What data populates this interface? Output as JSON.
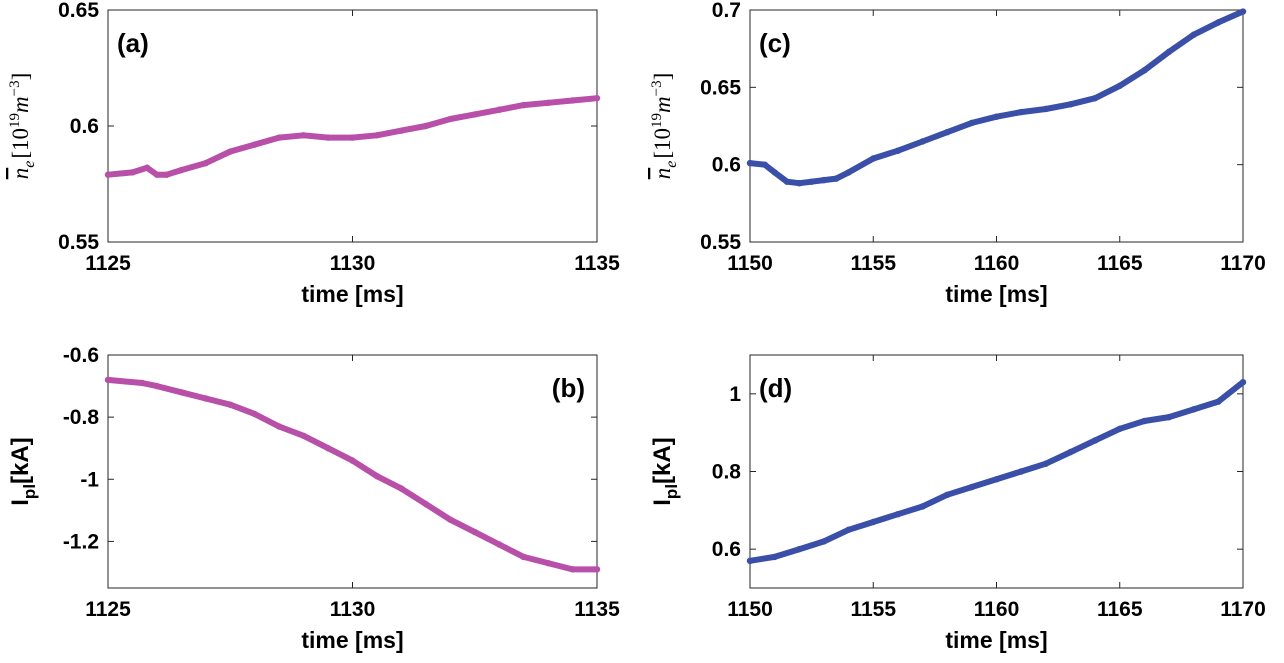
{
  "chart_data": [
    {
      "type": "line",
      "panel_label": "(a)",
      "label_pos": "top-left",
      "xlabel": "time [ms]",
      "ylabel": {
        "main": "n",
        "sub": "e",
        "unit": "[10",
        "exp": "19",
        "unit2": "m",
        "exp2": "−3",
        "close": "]"
      },
      "xlim": [
        1125,
        1135
      ],
      "ylim": [
        0.55,
        0.65
      ],
      "xticks": [
        1125,
        1130,
        1135
      ],
      "yticks": [
        0.55,
        0.6,
        0.65
      ],
      "yticklabels": [
        "0.55",
        "0.6",
        "0.65"
      ],
      "color": "#b84fa8",
      "x": [
        1125,
        1125.5,
        1125.8,
        1126.0,
        1126.2,
        1126.5,
        1127.0,
        1127.5,
        1128.0,
        1128.5,
        1129.0,
        1129.5,
        1130.0,
        1130.5,
        1131.0,
        1131.5,
        1132.0,
        1132.5,
        1133.0,
        1133.5,
        1134.0,
        1134.5,
        1135
      ],
      "y": [
        0.579,
        0.58,
        0.582,
        0.579,
        0.579,
        0.581,
        0.584,
        0.589,
        0.592,
        0.595,
        0.596,
        0.595,
        0.595,
        0.596,
        0.598,
        0.6,
        0.603,
        0.605,
        0.607,
        0.609,
        0.61,
        0.611,
        0.612
      ]
    },
    {
      "type": "line",
      "panel_label": "(b)",
      "label_pos": "top-right",
      "xlabel": "time [ms]",
      "ylabel": {
        "main": "I",
        "sub": "pl",
        "unit": "[kA]"
      },
      "xlim": [
        1125,
        1135
      ],
      "ylim": [
        -1.35,
        -0.6
      ],
      "xticks": [
        1125,
        1130,
        1135
      ],
      "yticks": [
        -1.2,
        -1.0,
        -0.8,
        -0.6
      ],
      "yticklabels": [
        "-1.2",
        "-1",
        "-0.8",
        "-0.6"
      ],
      "color": "#b84fa8",
      "x": [
        1125,
        1125.7,
        1126.0,
        1126.5,
        1127.0,
        1127.5,
        1128.0,
        1128.5,
        1129.0,
        1129.5,
        1130.0,
        1130.5,
        1131.0,
        1131.5,
        1132.0,
        1132.5,
        1133.0,
        1133.5,
        1134.0,
        1134.5,
        1135
      ],
      "y": [
        -0.68,
        -0.69,
        -0.7,
        -0.72,
        -0.74,
        -0.76,
        -0.79,
        -0.83,
        -0.86,
        -0.9,
        -0.94,
        -0.99,
        -1.03,
        -1.08,
        -1.13,
        -1.17,
        -1.21,
        -1.25,
        -1.27,
        -1.29,
        -1.29
      ]
    },
    {
      "type": "line",
      "panel_label": "(c)",
      "label_pos": "top-left",
      "xlabel": "time [ms]",
      "ylabel": {
        "main": "n",
        "sub": "e",
        "unit": "[10",
        "exp": "19",
        "unit2": "m",
        "exp2": "−3",
        "close": "]"
      },
      "xlim": [
        1150,
        1170
      ],
      "ylim": [
        0.55,
        0.7
      ],
      "xticks": [
        1150,
        1155,
        1160,
        1165,
        1170
      ],
      "yticks": [
        0.55,
        0.6,
        0.65,
        0.7
      ],
      "yticklabels": [
        "0.55",
        "0.6",
        "0.65",
        "0.7"
      ],
      "color": "#3a4fa8",
      "x": [
        1150,
        1150.6,
        1151.0,
        1151.5,
        1152.0,
        1152.5,
        1153.0,
        1153.5,
        1154.0,
        1155.0,
        1156.0,
        1157.0,
        1158.0,
        1159.0,
        1160.0,
        1161.0,
        1162.0,
        1163.0,
        1164.0,
        1165.0,
        1166.0,
        1167.0,
        1168.0,
        1169.0,
        1170
      ],
      "y": [
        0.601,
        0.6,
        0.595,
        0.589,
        0.588,
        0.589,
        0.59,
        0.591,
        0.595,
        0.604,
        0.609,
        0.615,
        0.621,
        0.627,
        0.631,
        0.634,
        0.636,
        0.639,
        0.643,
        0.651,
        0.661,
        0.673,
        0.684,
        0.692,
        0.699
      ]
    },
    {
      "type": "line",
      "panel_label": "(d)",
      "label_pos": "top-left",
      "xlabel": "time [ms]",
      "ylabel": {
        "main": "I",
        "sub": "pl",
        "unit": "[kA]"
      },
      "xlim": [
        1150,
        1170
      ],
      "ylim": [
        0.5,
        1.1
      ],
      "xticks": [
        1150,
        1155,
        1160,
        1165,
        1170
      ],
      "yticks": [
        0.6,
        0.8,
        1.0
      ],
      "yticklabels": [
        "0.6",
        "0.8",
        "1"
      ],
      "color": "#3a4fa8",
      "x": [
        1150,
        1151,
        1152,
        1153,
        1154,
        1155,
        1156,
        1157,
        1158,
        1159,
        1160,
        1161,
        1162,
        1163,
        1164,
        1165,
        1166,
        1167,
        1168,
        1169,
        1170
      ],
      "y": [
        0.57,
        0.58,
        0.6,
        0.62,
        0.65,
        0.67,
        0.69,
        0.71,
        0.74,
        0.76,
        0.78,
        0.8,
        0.82,
        0.85,
        0.88,
        0.91,
        0.93,
        0.94,
        0.96,
        0.98,
        1.03
      ]
    }
  ]
}
